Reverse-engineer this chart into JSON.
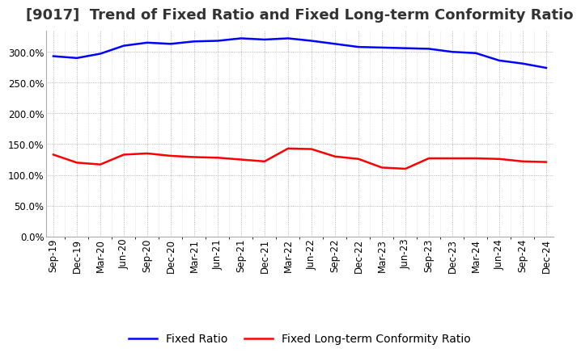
{
  "title": "[9017]  Trend of Fixed Ratio and Fixed Long-term Conformity Ratio",
  "x_labels": [
    "Sep-19",
    "Dec-19",
    "Mar-20",
    "Jun-20",
    "Sep-20",
    "Dec-20",
    "Mar-21",
    "Jun-21",
    "Sep-21",
    "Dec-21",
    "Mar-22",
    "Jun-22",
    "Sep-22",
    "Dec-22",
    "Mar-23",
    "Jun-23",
    "Sep-23",
    "Dec-23",
    "Mar-24",
    "Jun-24",
    "Sep-24",
    "Dec-24"
  ],
  "fixed_ratio": [
    293,
    290,
    297,
    310,
    315,
    313,
    317,
    318,
    322,
    320,
    322,
    318,
    313,
    308,
    307,
    306,
    305,
    300,
    298,
    286,
    281,
    274
  ],
  "fixed_lt_ratio": [
    133,
    120,
    117,
    133,
    135,
    131,
    129,
    128,
    125,
    122,
    143,
    142,
    130,
    126,
    112,
    110,
    127,
    127,
    127,
    126,
    122,
    121
  ],
  "ylim": [
    0,
    335
  ],
  "yticks": [
    0,
    50,
    100,
    150,
    200,
    250,
    300
  ],
  "blue_color": "#0000FF",
  "red_color": "#FF0000",
  "grid_color": "#888888",
  "background_color": "#FFFFFF",
  "legend_fixed_ratio": "Fixed Ratio",
  "legend_fixed_lt": "Fixed Long-term Conformity Ratio",
  "title_fontsize": 13,
  "axis_fontsize": 8.5,
  "legend_fontsize": 10,
  "title_color": "#333333"
}
